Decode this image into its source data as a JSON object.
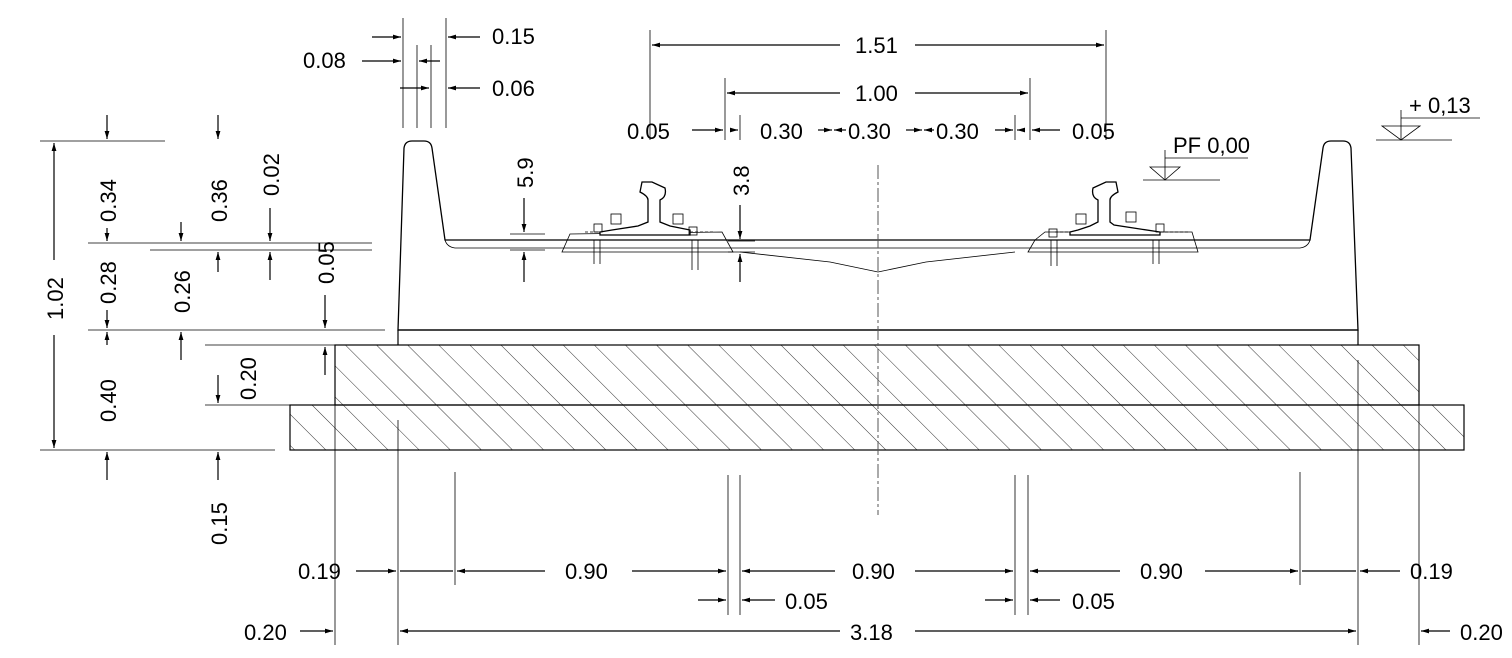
{
  "dimensions": {
    "bolt_spacing": "0.15",
    "rail_base_offset": "0.08",
    "rail_web": "0.06",
    "outer_width": "1.51",
    "inner_width": "1.00",
    "edge_left": "0.05",
    "spacing_1": "0.30",
    "spacing_2": "0.30",
    "spacing_3": "0.30",
    "edge_right": "0.05",
    "rail_height": "5.9",
    "plate_height": "3.8",
    "pf_level": "PF 0,00",
    "top_level": "+ 0,13",
    "upper_wall_height": "0.34",
    "wall_to_top": "0.36",
    "cant": "0.02",
    "slab_top": "0.05",
    "mid_height": "0.28",
    "inner_mid": "0.26",
    "total_height": "1.02",
    "lower_height": "0.40",
    "slab_thickness": "0.20",
    "base_thickness": "0.15",
    "left_edge_offset": "0.19",
    "span_left": "0.90",
    "span_center": "0.90",
    "span_right": "0.90",
    "right_edge_offset": "0.19",
    "gap_left": "0.05",
    "gap_right": "0.05",
    "base_overhang_left": "0.20",
    "overall_width": "3.18",
    "base_overhang_right": "0.20"
  }
}
